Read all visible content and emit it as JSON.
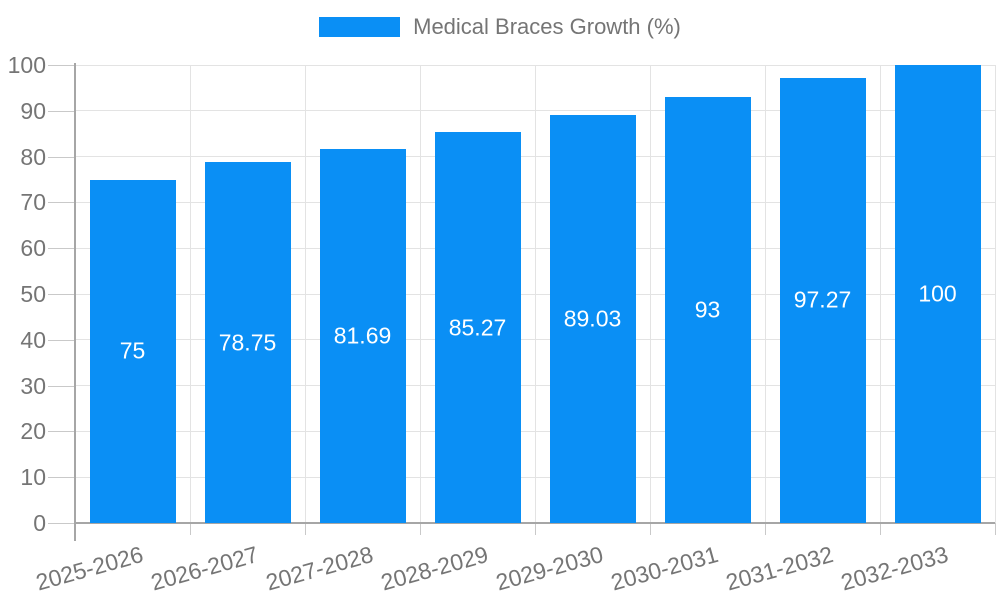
{
  "legend": {
    "label": "Medical Braces Growth (%)",
    "swatch_color": "#0a8ff5"
  },
  "chart_data": {
    "type": "bar",
    "title": "Medical Braces Growth (%)",
    "categories": [
      "2025-2026",
      "2026-2027",
      "2027-2028",
      "2028-2029",
      "2029-2030",
      "2030-2031",
      "2031-2032",
      "2032-2033"
    ],
    "values": [
      75,
      78.75,
      81.69,
      85.27,
      89.03,
      93,
      97.27,
      100
    ],
    "value_labels": [
      "75",
      "78.75",
      "81.69",
      "85.27",
      "89.03",
      "93",
      "97.27",
      "100"
    ],
    "xlabel": "",
    "ylabel": "",
    "ylim": [
      0,
      100
    ],
    "yticks": [
      0,
      10,
      20,
      30,
      40,
      50,
      60,
      70,
      80,
      90,
      100
    ],
    "ytick_labels": [
      "0",
      "10",
      "20",
      "30",
      "40",
      "50",
      "60",
      "70",
      "80",
      "90",
      "100"
    ],
    "grid": true,
    "legend_position": "top",
    "bar_color": "#0a8ff5",
    "value_label_color": "#ffffff"
  },
  "colors": {
    "bar": "#0a8ff5",
    "text": "#757575",
    "axis": "#a6a6a6",
    "grid": "#e3e3e3",
    "tick": "#c9c9c9",
    "background": "#ffffff"
  }
}
